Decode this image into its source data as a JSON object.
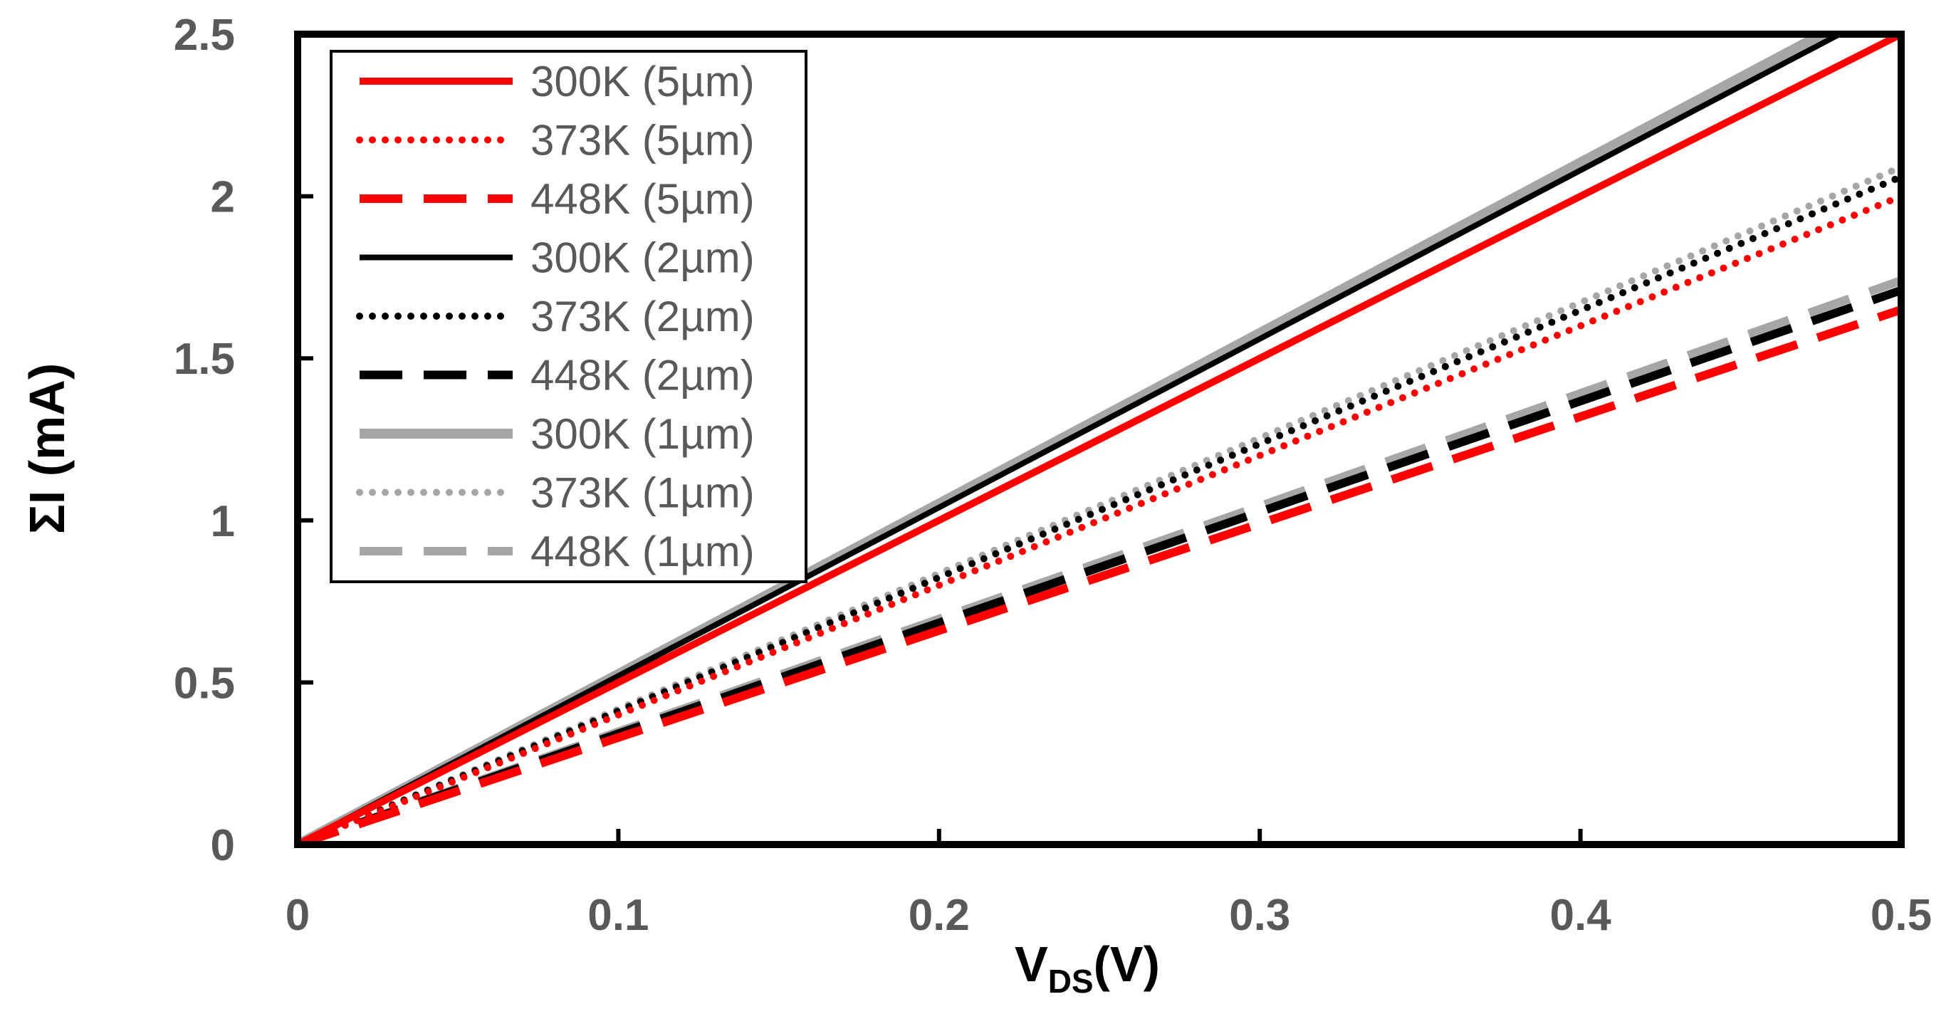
{
  "chart_data": {
    "type": "line",
    "title": "",
    "xlabel": "V",
    "xlabel_sub": "DS",
    "xlabel_suffix": "(V)",
    "ylabel": "ΣI (mA)",
    "xlim": [
      0,
      0.5
    ],
    "ylim": [
      0,
      2.5
    ],
    "xticks": [
      0,
      0.1,
      0.2,
      0.3,
      0.4,
      0.5
    ],
    "xtick_labels": [
      "0",
      "0.1",
      "0.2",
      "0.3",
      "0.4",
      "0.5"
    ],
    "yticks": [
      0,
      0.5,
      1,
      1.5,
      2,
      2.5
    ],
    "ytick_labels": [
      "0",
      "0.5",
      "1",
      "1.5",
      "2",
      "2.5"
    ],
    "grid": false,
    "legend_position": "top-left",
    "series": [
      {
        "name": "300K (5µm)",
        "color": "#ff0000",
        "style": "solid",
        "slope": 5.0
      },
      {
        "name": "373K (5µm)",
        "color": "#ff0000",
        "style": "dotted",
        "slope": 4.0
      },
      {
        "name": "448K (5µm)",
        "color": "#ff0000",
        "style": "dashed",
        "slope": 3.3
      },
      {
        "name": "300K (2µm)",
        "color": "#000000",
        "style": "solid",
        "slope": 5.2
      },
      {
        "name": "373K (2µm)",
        "color": "#000000",
        "style": "dotted",
        "slope": 4.12
      },
      {
        "name": "448K (2µm)",
        "color": "#000000",
        "style": "dashed",
        "slope": 3.42
      },
      {
        "name": "300K (1µm)",
        "color": "#a6a6a6",
        "style": "solid",
        "slope": 5.26
      },
      {
        "name": "373K (1µm)",
        "color": "#a6a6a6",
        "style": "dotted",
        "slope": 4.18
      },
      {
        "name": "448K (1µm)",
        "color": "#a6a6a6",
        "style": "dashed",
        "slope": 3.48
      }
    ]
  }
}
